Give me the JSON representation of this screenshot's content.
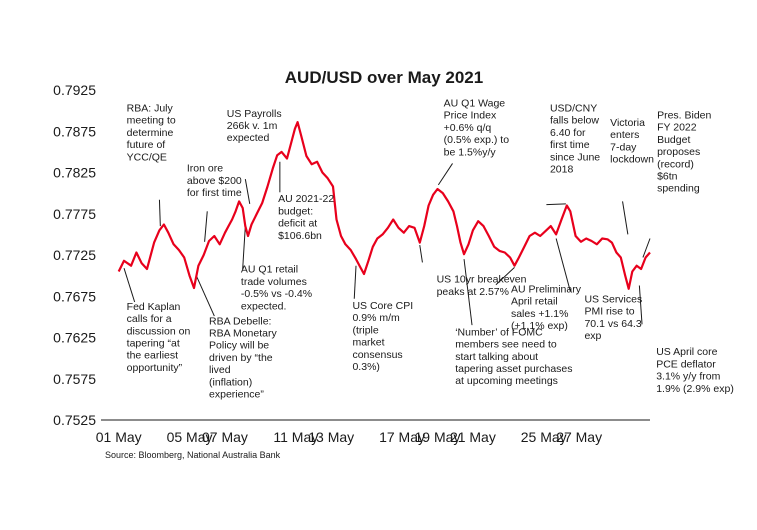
{
  "chart_data": {
    "type": "line",
    "title": "AUD/USD over May 2021",
    "source": "Source: Bloomberg, National Australia Bank",
    "xlabel": "",
    "ylabel": "",
    "xlim": [
      0,
      31
    ],
    "ylim": [
      0.7525,
      0.7925
    ],
    "y_ticks": [
      "0.7925",
      "0.7875",
      "0.7825",
      "0.7775",
      "0.7725",
      "0.7675",
      "0.7625",
      "0.7575",
      "0.7525"
    ],
    "x_ticks": [
      {
        "label": "01 May",
        "day": 1
      },
      {
        "label": "05 May",
        "day": 5
      },
      {
        "label": "07 May",
        "day": 7
      },
      {
        "label": "11 May",
        "day": 11
      },
      {
        "label": "13 May",
        "day": 13
      },
      {
        "label": "17 May",
        "day": 17
      },
      {
        "label": "19 May",
        "day": 19
      },
      {
        "label": "21 May",
        "day": 21
      },
      {
        "label": "25 May",
        "day": 25
      },
      {
        "label": "27 May",
        "day": 27
      }
    ],
    "series": [
      {
        "color": "#e8001c",
        "points": [
          [
            1.0,
            0.7705
          ],
          [
            1.3,
            0.7718
          ],
          [
            1.7,
            0.7712
          ],
          [
            2.0,
            0.7728
          ],
          [
            2.3,
            0.7715
          ],
          [
            2.6,
            0.7708
          ],
          [
            3.0,
            0.774
          ],
          [
            3.3,
            0.7755
          ],
          [
            3.55,
            0.7762
          ],
          [
            3.8,
            0.7752
          ],
          [
            4.1,
            0.7738
          ],
          [
            4.4,
            0.7731
          ],
          [
            4.7,
            0.7722
          ],
          [
            5.0,
            0.77
          ],
          [
            5.25,
            0.7685
          ],
          [
            5.5,
            0.7712
          ],
          [
            5.8,
            0.7725
          ],
          [
            6.1,
            0.7742
          ],
          [
            6.4,
            0.7748
          ],
          [
            6.7,
            0.7738
          ],
          [
            7.0,
            0.7752
          ],
          [
            7.2,
            0.776
          ],
          [
            7.4,
            0.7768
          ],
          [
            7.6,
            0.7778
          ],
          [
            7.8,
            0.779
          ],
          [
            8.0,
            0.7782
          ],
          [
            8.15,
            0.776
          ],
          [
            8.3,
            0.7748
          ],
          [
            8.5,
            0.7762
          ],
          [
            8.8,
            0.7775
          ],
          [
            9.1,
            0.7788
          ],
          [
            9.4,
            0.7808
          ],
          [
            9.7,
            0.783
          ],
          [
            9.95,
            0.7846
          ],
          [
            10.2,
            0.785
          ],
          [
            10.5,
            0.7842
          ],
          [
            10.75,
            0.7862
          ],
          [
            10.95,
            0.7878
          ],
          [
            11.1,
            0.7886
          ],
          [
            11.3,
            0.787
          ],
          [
            11.6,
            0.7845
          ],
          [
            11.9,
            0.7835
          ],
          [
            12.2,
            0.7838
          ],
          [
            12.5,
            0.7825
          ],
          [
            12.8,
            0.7818
          ],
          [
            13.1,
            0.7808
          ],
          [
            13.3,
            0.7768
          ],
          [
            13.55,
            0.7748
          ],
          [
            13.8,
            0.7738
          ],
          [
            14.1,
            0.7731
          ],
          [
            14.4,
            0.772
          ],
          [
            14.65,
            0.771
          ],
          [
            14.85,
            0.7702
          ],
          [
            15.1,
            0.7718
          ],
          [
            15.35,
            0.7735
          ],
          [
            15.6,
            0.7745
          ],
          [
            15.9,
            0.775
          ],
          [
            16.2,
            0.7758
          ],
          [
            16.5,
            0.7768
          ],
          [
            16.8,
            0.7758
          ],
          [
            17.1,
            0.7752
          ],
          [
            17.4,
            0.776
          ],
          [
            17.7,
            0.7758
          ],
          [
            18.0,
            0.774
          ],
          [
            18.25,
            0.776
          ],
          [
            18.5,
            0.7785
          ],
          [
            18.75,
            0.7798
          ],
          [
            19.0,
            0.7805
          ],
          [
            19.3,
            0.78
          ],
          [
            19.6,
            0.779
          ],
          [
            19.9,
            0.7778
          ],
          [
            20.1,
            0.776
          ],
          [
            20.3,
            0.774
          ],
          [
            20.5,
            0.7726
          ],
          [
            20.75,
            0.7738
          ],
          [
            21.0,
            0.7755
          ],
          [
            21.3,
            0.7766
          ],
          [
            21.6,
            0.776
          ],
          [
            21.9,
            0.7748
          ],
          [
            22.2,
            0.7735
          ],
          [
            22.5,
            0.773
          ],
          [
            22.8,
            0.7728
          ],
          [
            23.1,
            0.7722
          ],
          [
            23.35,
            0.7712
          ],
          [
            23.6,
            0.7722
          ],
          [
            23.9,
            0.7735
          ],
          [
            24.2,
            0.7748
          ],
          [
            24.5,
            0.7752
          ],
          [
            24.8,
            0.7748
          ],
          [
            25.1,
            0.7754
          ],
          [
            25.4,
            0.776
          ],
          [
            25.7,
            0.775
          ],
          [
            26.0,
            0.7768
          ],
          [
            26.3,
            0.7785
          ],
          [
            26.5,
            0.7778
          ],
          [
            26.8,
            0.7748
          ],
          [
            27.1,
            0.7741
          ],
          [
            27.4,
            0.7745
          ],
          [
            27.7,
            0.7742
          ],
          [
            28.0,
            0.7738
          ],
          [
            28.3,
            0.7745
          ],
          [
            28.6,
            0.7744
          ],
          [
            28.85,
            0.774
          ],
          [
            29.1,
            0.7728
          ],
          [
            29.35,
            0.7722
          ],
          [
            29.6,
            0.77
          ],
          [
            29.8,
            0.7684
          ],
          [
            30.0,
            0.7705
          ],
          [
            30.25,
            0.7712
          ],
          [
            30.5,
            0.7708
          ],
          [
            30.75,
            0.7722
          ],
          [
            31.0,
            0.7728
          ]
        ]
      }
    ],
    "annotations": [
      {
        "lines": [
          "RBA: July",
          "meeting to",
          "determine",
          "future of",
          "YCC/QE"
        ],
        "day": 1.45,
        "value": 0.7899
      },
      {
        "lines": [
          "Fed Kaplan",
          "calls for a",
          "discussion on",
          "tapering “at",
          "the earliest",
          "opportunity”"
        ],
        "day": 1.45,
        "value": 0.76585
      },
      {
        "lines": [
          "Iron ore",
          "above $200",
          "for first time"
        ],
        "day": 4.85,
        "value": 0.7826
      },
      {
        "lines": [
          "US Payrolls",
          "266k v. 1m",
          "expected"
        ],
        "day": 7.1,
        "value": 0.78925
      },
      {
        "lines": [
          "AU 2021-22",
          "budget:",
          "deficit at",
          "$106.6bn"
        ],
        "day": 10.0,
        "value": 0.7789
      },
      {
        "lines": [
          "AU Q1 retail",
          "trade volumes",
          "-0.5% vs -0.4%",
          "expected."
        ],
        "day": 7.9,
        "value": 0.77035
      },
      {
        "lines": [
          "RBA Debelle:",
          "RBA Monetary",
          "Policy will be",
          "driven by “the",
          "lived",
          "(inflation)",
          "experience”"
        ],
        "day": 6.1,
        "value": 0.7641
      },
      {
        "lines": [
          "US Core CPI",
          "0.9% m/m",
          "(triple",
          "market",
          "consensus",
          "0.3%)"
        ],
        "day": 14.2,
        "value": 0.76595
      },
      {
        "lines": [
          "US 10yr breakeven",
          "peaks at 2.57%"
        ],
        "day": 18.95,
        "value": 0.76915
      },
      {
        "lines": [
          "AU Q1 Wage",
          "Price Index",
          "+0.6% q/q",
          "(0.5% exp.) to",
          "be 1.5%y/y"
        ],
        "day": 19.35,
        "value": 0.7905
      },
      {
        "lines": [
          "‘Number’ of FOMC",
          "members see need to",
          "start talking about",
          "tapering asset purchases",
          "at upcoming meetings"
        ],
        "day": 20.0,
        "value": 0.76275
      },
      {
        "lines": [
          "AU Preliminary",
          "April retail",
          "sales +1.1%",
          "(+1.1% exp)"
        ],
        "day": 23.15,
        "value": 0.76795
      },
      {
        "lines": [
          "USD/CNY",
          "falls below",
          "6.40 for",
          "first time",
          "since June",
          "2018"
        ],
        "day": 25.35,
        "value": 0.7899
      },
      {
        "lines": [
          "US Services",
          "PMI rise to",
          "70.1 vs 64.3",
          "exp"
        ],
        "day": 27.3,
        "value": 0.76675
      },
      {
        "lines": [
          "Victoria",
          "enters",
          "7-day",
          "lockdown"
        ],
        "day": 28.75,
        "value": 0.78815
      },
      {
        "lines": [
          "Pres. Biden",
          "FY 2022",
          "Budget",
          "proposes",
          "(record)",
          "$6tn",
          "spending"
        ],
        "day": 31.4,
        "value": 0.78905
      },
      {
        "lines": [
          "US April core",
          "PCE deflator",
          "3.1% y/y from",
          "1.9% (2.9% exp)"
        ],
        "day": 31.35,
        "value": 0.76035
      }
    ],
    "pointers": [
      {
        "from": [
          1.9,
          0.7668
        ],
        "to": [
          1.3,
          0.7709
        ]
      },
      {
        "from": [
          3.3,
          0.7792
        ],
        "to": [
          3.35,
          0.776
        ]
      },
      {
        "from": [
          6.0,
          0.7778
        ],
        "to": [
          5.85,
          0.7741
        ]
      },
      {
        "from": [
          8.15,
          0.7817
        ],
        "to": [
          8.4,
          0.7787
        ]
      },
      {
        "from": [
          10.1,
          0.7801
        ],
        "to": [
          10.1,
          0.7838
        ]
      },
      {
        "from": [
          8.0,
          0.7708
        ],
        "to": [
          8.15,
          0.776
        ]
      },
      {
        "from": [
          6.4,
          0.7651
        ],
        "to": [
          5.4,
          0.7699
        ]
      },
      {
        "from": [
          14.3,
          0.7672
        ],
        "to": [
          14.4,
          0.7712
        ]
      },
      {
        "from": [
          18.15,
          0.7716
        ],
        "to": [
          18.0,
          0.7737
        ]
      },
      {
        "from": [
          19.85,
          0.7836
        ],
        "to": [
          19.05,
          0.781
        ]
      },
      {
        "from": [
          20.95,
          0.764
        ],
        "to": [
          20.5,
          0.772
        ]
      },
      {
        "from": [
          22.3,
          0.7689
        ],
        "to": [
          23.35,
          0.771
        ]
      },
      {
        "from": [
          25.15,
          0.7786
        ],
        "to": [
          26.25,
          0.7787
        ]
      },
      {
        "from": [
          26.5,
          0.7681
        ],
        "to": [
          25.7,
          0.7745
        ]
      },
      {
        "from": [
          29.45,
          0.779
        ],
        "to": [
          29.75,
          0.775
        ]
      },
      {
        "from": [
          31.0,
          0.7745
        ],
        "to": [
          30.6,
          0.7722
        ]
      },
      {
        "from": [
          30.55,
          0.7641
        ],
        "to": [
          30.4,
          0.7688
        ]
      }
    ]
  }
}
